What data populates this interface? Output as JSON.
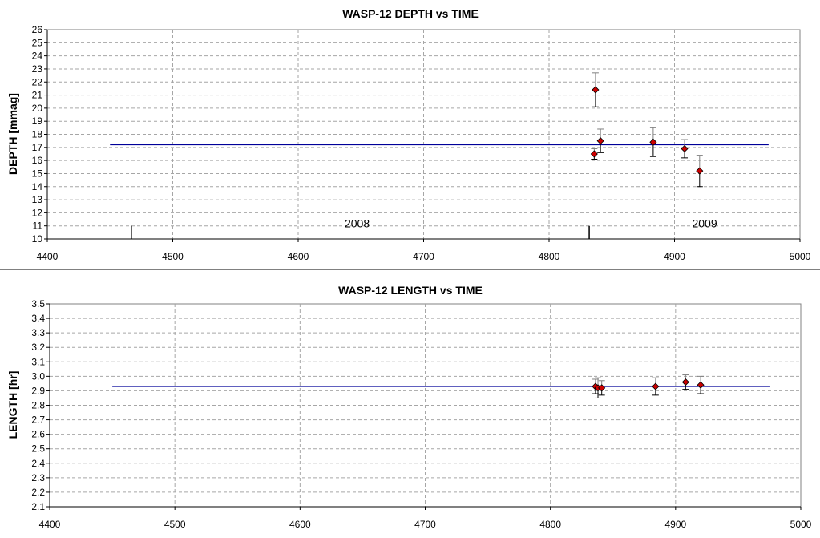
{
  "colors": {
    "frame": "#808080",
    "grid": "#a6a6a6",
    "fit_line": "#000099",
    "marker_fill": "#cc0000",
    "marker_edge": "#000000",
    "errorbar_top": "#808080",
    "errorbar_bottom": "#000000",
    "separator": "#000000"
  },
  "chart_data": [
    {
      "type": "scatter",
      "title": "WASP-12 DEPTH vs TIME",
      "xlabel": "",
      "ylabel": "DEPTH [mmag]",
      "xlim": [
        4400,
        5000
      ],
      "ylim": [
        10,
        26
      ],
      "xticks": [
        4400,
        4500,
        4600,
        4700,
        4800,
        4900,
        5000
      ],
      "yticks": [
        10,
        11,
        12,
        13,
        14,
        15,
        16,
        17,
        18,
        19,
        20,
        21,
        22,
        23,
        24,
        25,
        26
      ],
      "grid": true,
      "legend": "none",
      "series": [
        {
          "kind": "points",
          "x": [
            4836,
            4837,
            4841,
            4883,
            4908,
            4920
          ],
          "y": [
            16.5,
            21.4,
            17.5,
            17.4,
            16.9,
            15.2
          ],
          "yerr": [
            0.4,
            1.3,
            0.9,
            1.1,
            0.7,
            1.2
          ]
        },
        {
          "kind": "fit",
          "x": [
            4450,
            4975
          ],
          "y": [
            17.2,
            17.2
          ]
        }
      ],
      "year_markers": [
        {
          "x": 4467,
          "y_top": 11
        },
        {
          "x": 4832,
          "y_top": 11
        }
      ],
      "annotations": [
        {
          "text": "2008",
          "x": 4647,
          "y": 10.9
        },
        {
          "text": "2009",
          "x": 4924,
          "y": 10.9
        }
      ]
    },
    {
      "type": "scatter",
      "title": "WASP-12 LENGTH vs TIME",
      "xlabel": "",
      "ylabel": "LENGTH [hr]",
      "xlim": [
        4400,
        5000
      ],
      "ylim": [
        2.1,
        3.5
      ],
      "xticks": [
        4400,
        4500,
        4600,
        4700,
        4800,
        4900,
        5000
      ],
      "yticks": [
        2.1,
        2.2,
        2.3,
        2.4,
        2.5,
        2.6,
        2.7,
        2.8,
        2.9,
        3.0,
        3.1,
        3.2,
        3.3,
        3.4,
        3.5
      ],
      "grid": true,
      "legend": "none",
      "series": [
        {
          "kind": "points",
          "x": [
            4836,
            4838,
            4841,
            4884,
            4908,
            4920
          ],
          "y": [
            2.93,
            2.92,
            2.92,
            2.93,
            2.96,
            2.94
          ],
          "yerr": [
            0.05,
            0.07,
            0.05,
            0.06,
            0.05,
            0.06
          ]
        },
        {
          "kind": "fit",
          "x": [
            4450,
            4975
          ],
          "y": [
            2.93,
            2.93
          ]
        }
      ]
    }
  ]
}
